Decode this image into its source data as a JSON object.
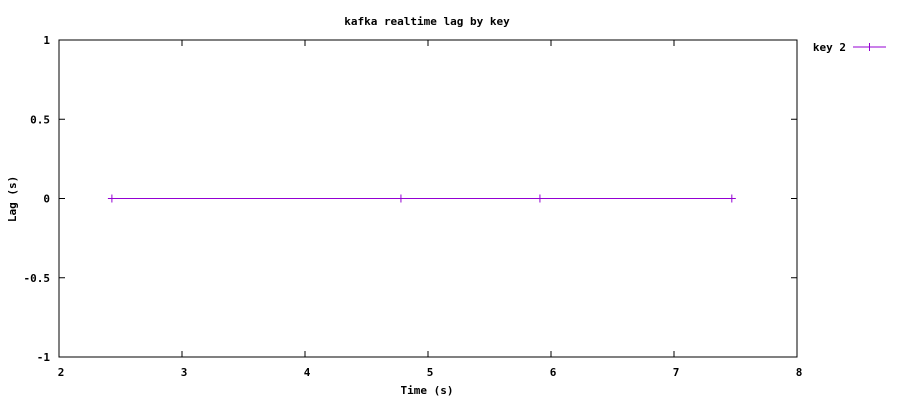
{
  "chart_data": {
    "type": "line",
    "title": "kafka realtime lag by key",
    "xlabel": "Time (s)",
    "ylabel": "Lag (s)",
    "xlim": [
      2,
      8
    ],
    "ylim": [
      -1,
      1
    ],
    "x_ticks": [
      2,
      3,
      4,
      5,
      6,
      7,
      8
    ],
    "y_ticks": [
      1,
      0.5,
      0,
      -0.5,
      -1
    ],
    "x_tick_labels": [
      "2",
      "3",
      "4",
      "5",
      "6",
      "7",
      "8"
    ],
    "y_tick_labels": [
      "1",
      "0.5",
      "0",
      "-0.5",
      "-1"
    ],
    "grid": false,
    "legend_position": "outside-top-right",
    "series": [
      {
        "name": "key 2",
        "color": "#9400d3",
        "marker": "plus",
        "x": [
          2.43,
          4.78,
          5.91,
          7.47
        ],
        "y": [
          0,
          0,
          0,
          0
        ]
      }
    ]
  }
}
